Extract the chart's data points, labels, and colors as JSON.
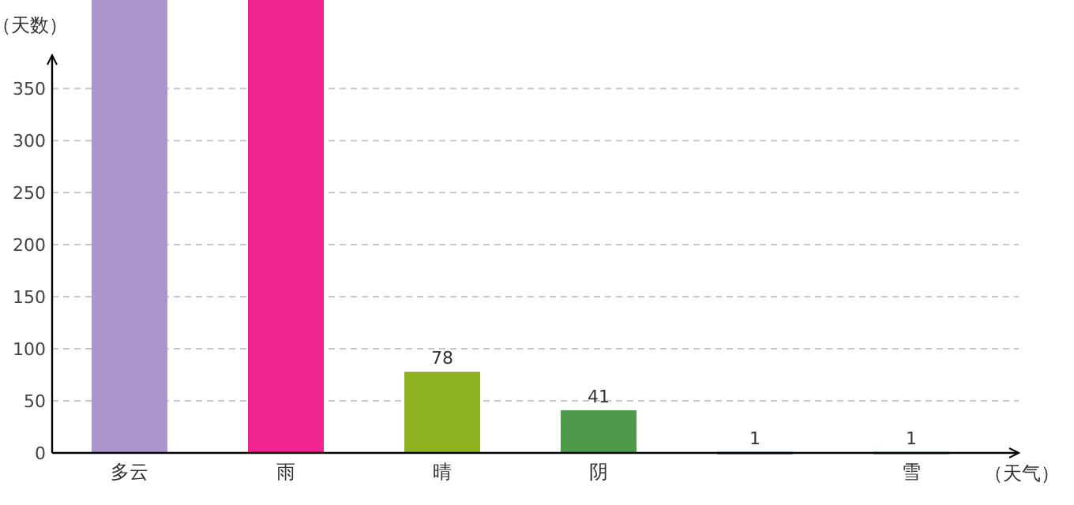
{
  "chart_data": {
    "type": "bar",
    "xlabel": "（天气）",
    "ylabel": "（天数）",
    "categories": [
      "多云",
      "雨",
      "晴",
      "阴",
      null,
      "雪"
    ],
    "values": [
      435,
      435,
      78,
      41,
      1,
      1
    ],
    "colors": [
      "#ab96cc",
      "#f0248f",
      "#8fb320",
      "#4e9a4a",
      "#2a5f7a",
      "#3f9e8e"
    ],
    "value_labels": [
      null,
      null,
      "78",
      "41",
      "1",
      "1"
    ],
    "ylim": [
      0,
      435
    ],
    "yticks": [
      0,
      50,
      100,
      150,
      200,
      250,
      300,
      350
    ],
    "grid": "y"
  }
}
